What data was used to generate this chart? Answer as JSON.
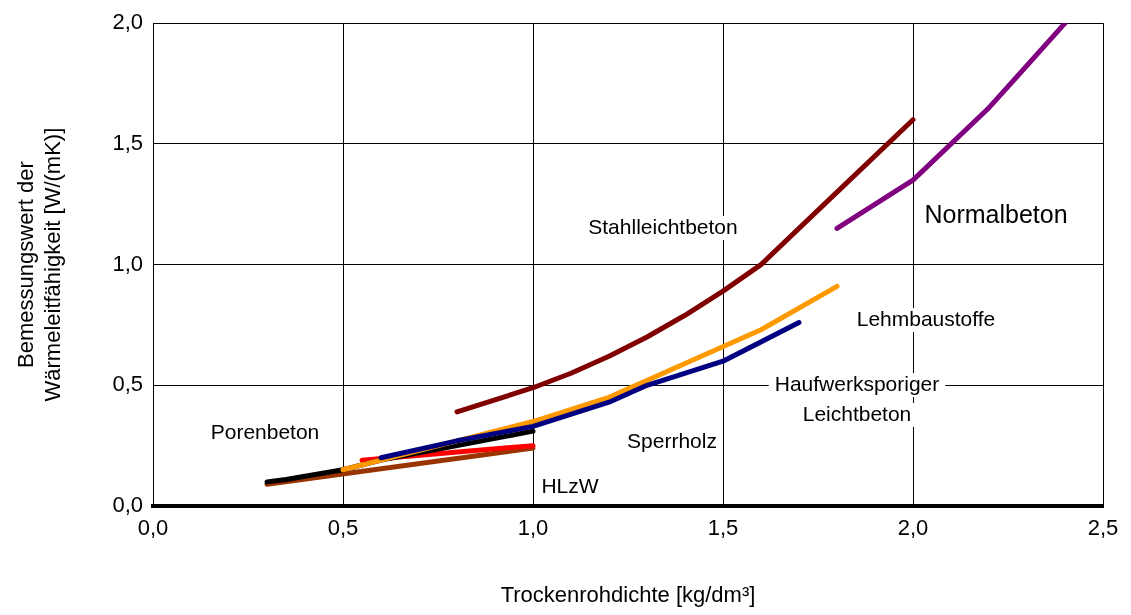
{
  "chart_data": {
    "type": "line",
    "xlabel": "Trockenrohdichte [kg/dm³]",
    "ylabel": "Bemessungswert der\nWärmeleitfähigkeit [W/(mK)]",
    "xlim": [
      0,
      2.5
    ],
    "ylim": [
      0,
      2
    ],
    "xticks": [
      {
        "value": 0,
        "label": "0,0"
      },
      {
        "value": 0.5,
        "label": "0,5"
      },
      {
        "value": 1,
        "label": "1,0"
      },
      {
        "value": 1.5,
        "label": "1,5"
      },
      {
        "value": 2,
        "label": "2,0"
      },
      {
        "value": 2.5,
        "label": "2,5"
      }
    ],
    "yticks": [
      {
        "value": 0,
        "label": "0,0"
      },
      {
        "value": 0.5,
        "label": "0,5"
      },
      {
        "value": 1,
        "label": "1,0"
      },
      {
        "value": 1.5,
        "label": "1,5"
      },
      {
        "value": 2,
        "label": "2,0"
      }
    ],
    "grid": true,
    "legend": false,
    "marker": "none",
    "line_style": "solid",
    "series": [
      {
        "name": "Stahlleichtbeton",
        "color": "#800000",
        "x": [
          0.8,
          1.0,
          1.1,
          1.2,
          1.3,
          1.4,
          1.5,
          1.6,
          1.8,
          2.0
        ],
        "values": [
          0.39,
          0.49,
          0.55,
          0.62,
          0.7,
          0.79,
          0.89,
          1.0,
          1.3,
          1.6
        ]
      },
      {
        "name": "Normalbeton",
        "color": "#800080",
        "x": [
          1.8,
          2.0,
          2.2,
          2.4
        ],
        "values": [
          1.15,
          1.35,
          1.65,
          2.0
        ]
      },
      {
        "name": "Haufwerksporiger\nLeichtbeton",
        "color": "#000080",
        "x": [
          0.6,
          0.8,
          1.0,
          1.2,
          1.3,
          1.5,
          1.7
        ],
        "values": [
          0.2,
          0.27,
          0.33,
          0.43,
          0.5,
          0.6,
          0.76
        ]
      },
      {
        "name": "Lehmbaustoffe",
        "color": "#ff9900",
        "x": [
          0.5,
          0.6,
          0.8,
          1.0,
          1.2,
          1.4,
          1.6,
          1.8
        ],
        "values": [
          0.15,
          0.19,
          0.27,
          0.35,
          0.45,
          0.59,
          0.73,
          0.91
        ]
      },
      {
        "name": "Porenbeton",
        "color": "#000000",
        "x": [
          0.3,
          0.35,
          0.5,
          0.6,
          0.8,
          1.0
        ],
        "values": [
          0.1,
          0.11,
          0.15,
          0.19,
          0.25,
          0.31
        ]
      },
      {
        "color": "#ff0000",
        "x": [
          0.55,
          1.0
        ],
        "values": [
          0.19,
          0.25
        ]
      },
      {
        "name": "HLzW",
        "color": "#993300",
        "x": [
          0.3,
          1.0
        ],
        "values": [
          0.09,
          0.24
        ]
      }
    ],
    "annotations": [
      "Sperrholz"
    ]
  }
}
